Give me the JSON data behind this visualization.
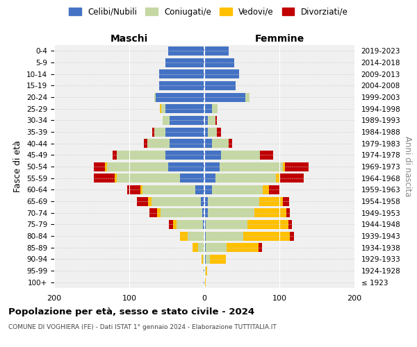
{
  "age_groups": [
    "100+",
    "95-99",
    "90-94",
    "85-89",
    "80-84",
    "75-79",
    "70-74",
    "65-69",
    "60-64",
    "55-59",
    "50-54",
    "45-49",
    "40-44",
    "35-39",
    "30-34",
    "25-29",
    "20-24",
    "15-19",
    "10-14",
    "5-9",
    "0-4"
  ],
  "birth_years": [
    "≤ 1923",
    "1924-1928",
    "1929-1933",
    "1934-1938",
    "1939-1943",
    "1944-1948",
    "1949-1953",
    "1954-1958",
    "1959-1963",
    "1964-1968",
    "1969-1973",
    "1974-1978",
    "1979-1983",
    "1984-1988",
    "1989-1993",
    "1994-1998",
    "1999-2003",
    "2004-2008",
    "2009-2013",
    "2014-2018",
    "2019-2023"
  ],
  "colors": {
    "celibi": "#4472c4",
    "coniugati": "#c5d8a4",
    "vedovi": "#ffc000",
    "divorziati": "#c00000"
  },
  "males": {
    "celibi": [
      1,
      1,
      0,
      0,
      0,
      2,
      3,
      5,
      12,
      32,
      48,
      52,
      46,
      52,
      46,
      52,
      65,
      60,
      60,
      52,
      48
    ],
    "coniugati": [
      0,
      0,
      2,
      8,
      22,
      35,
      55,
      65,
      70,
      85,
      82,
      65,
      30,
      15,
      10,
      5,
      2,
      0,
      0,
      0,
      0
    ],
    "vedovi": [
      0,
      0,
      2,
      8,
      10,
      5,
      5,
      5,
      3,
      2,
      2,
      0,
      0,
      0,
      0,
      2,
      0,
      0,
      0,
      0,
      0
    ],
    "divorziati": [
      0,
      0,
      0,
      0,
      0,
      5,
      10,
      15,
      18,
      28,
      15,
      5,
      5,
      2,
      0,
      0,
      0,
      0,
      0,
      0,
      0
    ]
  },
  "females": {
    "celibi": [
      0,
      0,
      2,
      2,
      2,
      2,
      5,
      5,
      10,
      15,
      20,
      22,
      10,
      5,
      5,
      10,
      55,
      42,
      46,
      40,
      32
    ],
    "coniugati": [
      0,
      2,
      5,
      28,
      50,
      55,
      62,
      68,
      68,
      80,
      85,
      52,
      22,
      12,
      10,
      8,
      5,
      0,
      0,
      0,
      0
    ],
    "vedovi": [
      2,
      2,
      22,
      42,
      62,
      55,
      42,
      32,
      8,
      5,
      2,
      0,
      0,
      0,
      0,
      0,
      0,
      0,
      0,
      0,
      0
    ],
    "divorziati": [
      0,
      0,
      0,
      5,
      5,
      5,
      5,
      8,
      15,
      32,
      32,
      18,
      5,
      5,
      2,
      0,
      0,
      0,
      0,
      0,
      0
    ]
  },
  "title": "Popolazione per età, sesso e stato civile - 2024",
  "subtitle": "COMUNE DI VOGHIERA (FE) - Dati ISTAT 1° gennaio 2024 - Elaborazione TUTTITALIA.IT",
  "ylabel_left": "Fasce di età",
  "ylabel_right": "Anni di nascita",
  "legend_labels": [
    "Celibi/Nubili",
    "Coniugati/e",
    "Vedovi/e",
    "Divorziati/e"
  ],
  "xlim": 200,
  "maschi_label": "Maschi",
  "femmine_label": "Femmine",
  "bg_color": "#f0f0f0"
}
